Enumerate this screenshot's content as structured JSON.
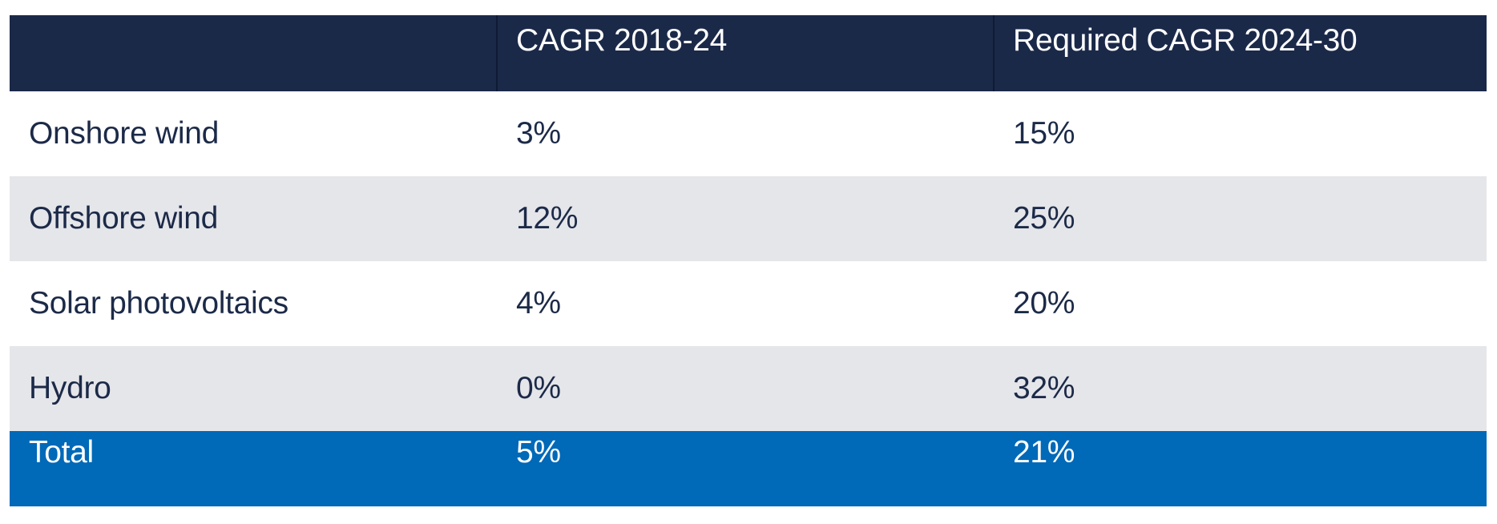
{
  "table": {
    "columns": [
      "",
      "CAGR 2018-24",
      "Required CAGR 2024-30"
    ],
    "rows": [
      {
        "label": "Onshore wind",
        "cagr_2018_24": "3%",
        "required_cagr_2024_30": "15%"
      },
      {
        "label": "Offshore wind",
        "cagr_2018_24": "12%",
        "required_cagr_2024_30": "25%"
      },
      {
        "label": "Solar photovoltaics",
        "cagr_2018_24": "4%",
        "required_cagr_2024_30": "20%"
      },
      {
        "label": "Hydro",
        "cagr_2018_24": "0%",
        "required_cagr_2024_30": "32%"
      }
    ],
    "total": {
      "label": "Total",
      "cagr_2018_24": "5%",
      "required_cagr_2024_30": "21%"
    }
  },
  "colors": {
    "header_bg": "#1b2949",
    "stripe_bg": "#e5e6ea",
    "total_bg": "#0069b8",
    "text_dark": "#1c2a48"
  }
}
